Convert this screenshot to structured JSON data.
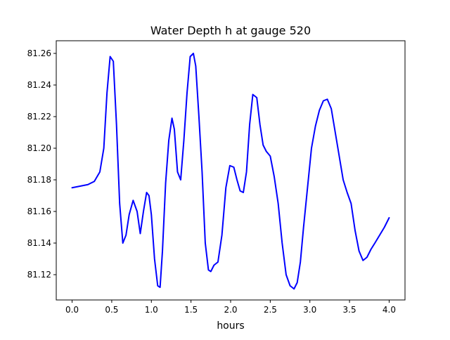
{
  "chart_data": {
    "type": "line",
    "title": "Water Depth h at gauge 520",
    "xlabel": "hours",
    "ylabel": "",
    "xlim": [
      -0.2,
      4.2
    ],
    "ylim": [
      81.104,
      81.268
    ],
    "x_ticks": [
      0.0,
      0.5,
      1.0,
      1.5,
      2.0,
      2.5,
      3.0,
      3.5,
      4.0
    ],
    "x_tick_labels": [
      "0.0",
      "0.5",
      "1.0",
      "1.5",
      "2.0",
      "2.5",
      "3.0",
      "3.5",
      "4.0"
    ],
    "y_ticks": [
      81.12,
      81.14,
      81.16,
      81.18,
      81.2,
      81.22,
      81.24,
      81.26
    ],
    "y_tick_labels": [
      "81.12",
      "81.14",
      "81.16",
      "81.18",
      "81.20",
      "81.22",
      "81.24",
      "81.26"
    ],
    "grid": false,
    "line_color": "#0000ff",
    "series": [
      {
        "name": "",
        "x": [
          0.0,
          0.1,
          0.2,
          0.28,
          0.35,
          0.4,
          0.44,
          0.48,
          0.52,
          0.56,
          0.6,
          0.64,
          0.68,
          0.72,
          0.77,
          0.82,
          0.86,
          0.9,
          0.94,
          0.97,
          1.0,
          1.04,
          1.08,
          1.11,
          1.14,
          1.18,
          1.22,
          1.26,
          1.29,
          1.33,
          1.37,
          1.41,
          1.45,
          1.49,
          1.53,
          1.56,
          1.6,
          1.64,
          1.68,
          1.72,
          1.75,
          1.79,
          1.84,
          1.89,
          1.94,
          1.99,
          2.04,
          2.08,
          2.12,
          2.16,
          2.2,
          2.24,
          2.28,
          2.33,
          2.37,
          2.41,
          2.45,
          2.5,
          2.55,
          2.6,
          2.65,
          2.7,
          2.75,
          2.8,
          2.84,
          2.88,
          2.92,
          2.97,
          3.02,
          3.07,
          3.12,
          3.17,
          3.22,
          3.27,
          3.32,
          3.37,
          3.42,
          3.47,
          3.52,
          3.57,
          3.62,
          3.67,
          3.72,
          3.77,
          3.82,
          3.88,
          3.94,
          4.0
        ],
        "y": [
          81.175,
          81.176,
          81.177,
          81.179,
          81.185,
          81.2,
          81.235,
          81.258,
          81.255,
          81.215,
          81.165,
          81.14,
          81.145,
          81.158,
          81.167,
          81.16,
          81.146,
          81.16,
          81.172,
          81.17,
          81.158,
          81.13,
          81.113,
          81.112,
          81.135,
          81.178,
          81.205,
          81.219,
          81.212,
          81.185,
          81.18,
          81.205,
          81.235,
          81.258,
          81.26,
          81.252,
          81.22,
          81.185,
          81.14,
          81.123,
          81.122,
          81.126,
          81.128,
          81.145,
          81.175,
          81.189,
          81.188,
          81.18,
          81.173,
          81.172,
          81.185,
          81.215,
          81.234,
          81.232,
          81.215,
          81.202,
          81.198,
          81.195,
          81.182,
          81.165,
          81.14,
          81.12,
          81.113,
          81.111,
          81.115,
          81.128,
          81.15,
          81.175,
          81.2,
          81.214,
          81.224,
          81.23,
          81.231,
          81.225,
          81.21,
          81.195,
          81.18,
          81.172,
          81.165,
          81.148,
          81.135,
          81.129,
          81.131,
          81.136,
          81.14,
          81.145,
          81.15,
          81.156
        ]
      }
    ]
  }
}
